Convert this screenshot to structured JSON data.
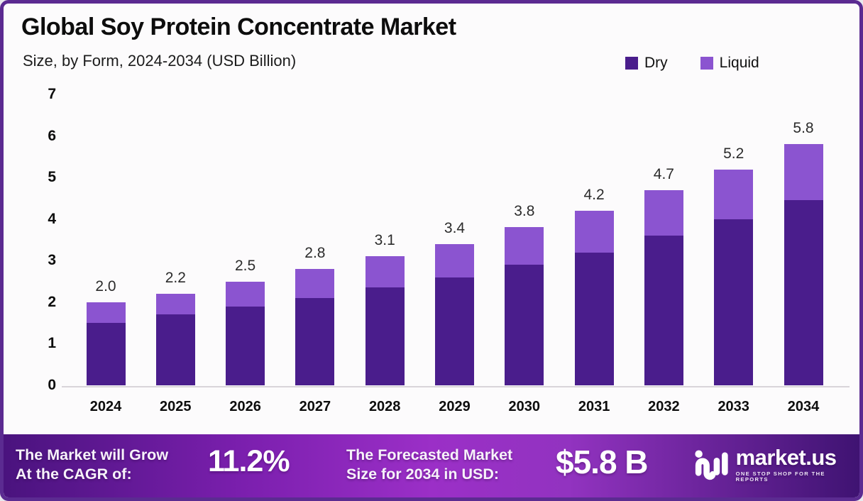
{
  "header": {
    "title": "Global Soy Protein Concentrate Market",
    "subtitle": "Size, by Form, 2024-2034 (USD Billion)"
  },
  "legend": [
    {
      "label": "Dry",
      "color": "#4a1d8c"
    },
    {
      "label": "Liquid",
      "color": "#8b54d0"
    }
  ],
  "chart_data": {
    "type": "bar",
    "stacked": true,
    "title": "Global Soy Protein Concentrate Market Size, by Form, 2024-2034 (USD Billion)",
    "categories": [
      "2024",
      "2025",
      "2026",
      "2027",
      "2028",
      "2029",
      "2030",
      "2031",
      "2032",
      "2033",
      "2034"
    ],
    "series": [
      {
        "name": "Dry",
        "color": "#4a1d8c",
        "values": [
          1.5,
          1.7,
          1.9,
          2.1,
          2.35,
          2.6,
          2.9,
          3.2,
          3.6,
          4.0,
          4.45
        ]
      },
      {
        "name": "Liquid",
        "color": "#8b54d0",
        "values": [
          0.5,
          0.5,
          0.6,
          0.7,
          0.75,
          0.8,
          0.9,
          1.0,
          1.1,
          1.2,
          1.35
        ]
      }
    ],
    "totals": [
      2.0,
      2.2,
      2.5,
      2.8,
      3.1,
      3.4,
      3.8,
      4.2,
      4.7,
      5.2,
      5.8
    ],
    "total_labels": [
      "2.0",
      "2.2",
      "2.5",
      "2.8",
      "3.1",
      "3.4",
      "3.8",
      "4.2",
      "4.7",
      "5.2",
      "5.8"
    ],
    "xlabel": "",
    "ylabel": "",
    "ylim": [
      0,
      7
    ],
    "yticks": [
      0,
      1,
      2,
      3,
      4,
      5,
      6,
      7
    ],
    "grid": false,
    "legend_position": "top-right"
  },
  "banner": {
    "cagr_label_line1": "The Market will Grow",
    "cagr_label_line2": "At the CAGR of:",
    "cagr_value": "11.2%",
    "forecast_label_line1": "The Forecasted Market",
    "forecast_label_line2": "Size for 2034 in USD:",
    "forecast_value": "$5.8 B",
    "logo_text": "market.us",
    "logo_tagline": "ONE STOP SHOP FOR THE REPORTS"
  },
  "colors": {
    "dry": "#4a1d8c",
    "liquid": "#8b54d0",
    "frame_border": "#5b2b91",
    "banner_gradient_left": "#4a137e",
    "banner_gradient_mid": "#9b2fc7",
    "banner_gradient_right": "#3f1372",
    "axis_line": "#d9d5da"
  }
}
